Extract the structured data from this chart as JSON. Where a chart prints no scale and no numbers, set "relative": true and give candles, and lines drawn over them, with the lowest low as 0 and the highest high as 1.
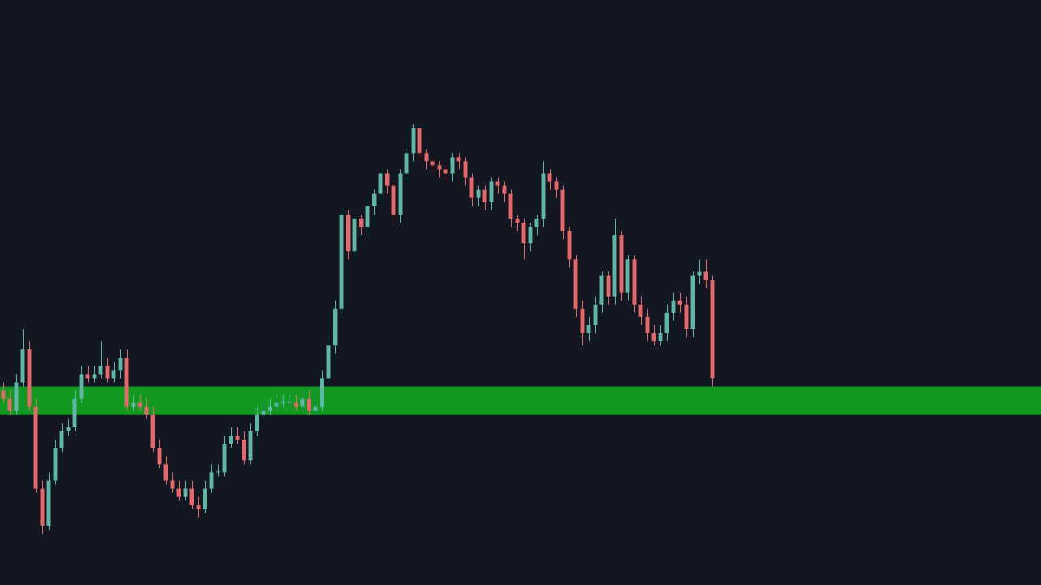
{
  "chart_data": {
    "type": "candlestick",
    "relative": true,
    "categories": [
      null,
      null,
      null,
      null,
      null,
      null,
      null,
      null,
      null,
      null,
      null,
      null,
      null,
      null,
      null,
      null,
      null,
      null,
      null,
      null,
      null,
      null,
      null,
      null,
      null,
      null,
      null,
      null,
      null,
      null,
      null,
      null,
      null,
      null,
      null,
      null,
      null,
      null,
      null,
      null,
      null,
      null,
      null,
      null,
      null,
      null,
      null,
      null,
      null,
      null,
      null,
      null,
      null,
      null,
      null,
      null,
      null,
      null,
      null,
      null,
      null,
      null,
      null,
      null,
      null,
      null,
      null,
      null,
      null,
      null,
      null,
      null,
      null,
      null,
      null,
      null,
      null,
      null,
      null,
      null,
      null,
      null,
      null,
      null,
      null,
      null,
      null,
      null,
      null,
      null,
      null,
      null,
      null,
      null,
      null,
      null,
      null,
      null,
      null,
      null,
      null,
      null,
      null,
      null,
      null,
      null,
      null,
      null,
      null,
      null,
      null,
      null,
      null,
      null,
      null,
      null,
      null,
      null,
      null,
      null,
      null,
      null,
      null,
      null,
      null,
      null,
      null,
      null,
      null,
      null,
      null,
      null,
      null,
      null,
      null,
      null,
      null,
      null,
      null,
      null,
      null,
      null,
      null,
      null,
      null,
      null,
      null,
      null,
      null,
      null,
      null,
      null,
      null,
      null,
      null,
      null,
      null,
      null,
      null,
      null
    ],
    "ohlc": [
      [
        0.35,
        0.37,
        0.32,
        0.33
      ],
      [
        0.33,
        0.35,
        0.29,
        0.3
      ],
      [
        0.3,
        0.39,
        0.29,
        0.37
      ],
      [
        0.37,
        0.5,
        0.36,
        0.45
      ],
      [
        0.45,
        0.47,
        0.3,
        0.31
      ],
      [
        0.31,
        0.33,
        0.1,
        0.11
      ],
      [
        0.11,
        0.13,
        0,
        0.02
      ],
      [
        0.02,
        0.15,
        0.01,
        0.13
      ],
      [
        0.13,
        0.23,
        0.12,
        0.21
      ],
      [
        0.21,
        0.27,
        0.2,
        0.25
      ],
      [
        0.25,
        0.28,
        0.24,
        0.26
      ],
      [
        0.26,
        0.35,
        0.25,
        0.33
      ],
      [
        0.33,
        0.41,
        0.32,
        0.39
      ],
      [
        0.39,
        0.41,
        0.37,
        0.38
      ],
      [
        0.38,
        0.41,
        0.37,
        0.39
      ],
      [
        0.39,
        0.47,
        0.38,
        0.41
      ],
      [
        0.41,
        0.43,
        0.37,
        0.38
      ],
      [
        0.38,
        0.42,
        0.37,
        0.4
      ],
      [
        0.4,
        0.45,
        0.38,
        0.43
      ],
      [
        0.43,
        0.45,
        0.3,
        0.31
      ],
      [
        0.31,
        0.34,
        0.3,
        0.32
      ],
      [
        0.32,
        0.34,
        0.3,
        0.31
      ],
      [
        0.31,
        0.33,
        0.28,
        0.29
      ],
      [
        0.29,
        0.31,
        0.2,
        0.21
      ],
      [
        0.21,
        0.23,
        0.16,
        0.17
      ],
      [
        0.17,
        0.19,
        0.12,
        0.13
      ],
      [
        0.13,
        0.15,
        0.1,
        0.11
      ],
      [
        0.11,
        0.13,
        0.08,
        0.09
      ],
      [
        0.09,
        0.13,
        0.08,
        0.11
      ],
      [
        0.11,
        0.13,
        0.06,
        0.07
      ],
      [
        0.07,
        0.09,
        0.04,
        0.06
      ],
      [
        0.06,
        0.13,
        0.05,
        0.11
      ],
      [
        0.11,
        0.17,
        0.1,
        0.15
      ],
      [
        0.15,
        0.17,
        0.14,
        0.15
      ],
      [
        0.15,
        0.24,
        0.14,
        0.22
      ],
      [
        0.22,
        0.26,
        0.21,
        0.24
      ],
      [
        0.24,
        0.26,
        0.22,
        0.23
      ],
      [
        0.23,
        0.25,
        0.17,
        0.18
      ],
      [
        0.18,
        0.27,
        0.17,
        0.25
      ],
      [
        0.25,
        0.31,
        0.24,
        0.29
      ],
      [
        0.29,
        0.32,
        0.28,
        0.3
      ],
      [
        0.3,
        0.33,
        0.29,
        0.31
      ],
      [
        0.31,
        0.34,
        0.3,
        0.32
      ],
      [
        0.32,
        0.34,
        0.31,
        0.32
      ],
      [
        0.32,
        0.34,
        0.31,
        0.32
      ],
      [
        0.32,
        0.34,
        0.3,
        0.31
      ],
      [
        0.31,
        0.35,
        0.3,
        0.33
      ],
      [
        0.33,
        0.35,
        0.29,
        0.3
      ],
      [
        0.3,
        0.33,
        0.29,
        0.31
      ],
      [
        0.31,
        0.4,
        0.3,
        0.38
      ],
      [
        0.38,
        0.48,
        0.37,
        0.46
      ],
      [
        0.46,
        0.57,
        0.44,
        0.55
      ],
      [
        0.55,
        0.79,
        0.53,
        0.78
      ],
      [
        0.78,
        0.79,
        0.67,
        0.69
      ],
      [
        0.69,
        0.78,
        0.67,
        0.77
      ],
      [
        0.77,
        0.78,
        0.73,
        0.75
      ],
      [
        0.75,
        0.81,
        0.73,
        0.8
      ],
      [
        0.8,
        0.84,
        0.78,
        0.83
      ],
      [
        0.83,
        0.89,
        0.81,
        0.88
      ],
      [
        0.88,
        0.89,
        0.83,
        0.85
      ],
      [
        0.85,
        0.86,
        0.76,
        0.78
      ],
      [
        0.78,
        0.89,
        0.76,
        0.88
      ],
      [
        0.88,
        0.94,
        0.86,
        0.93
      ],
      [
        0.93,
        1,
        0.91,
        0.99
      ],
      [
        0.99,
        0.99,
        0.91,
        0.93
      ],
      [
        0.93,
        0.94,
        0.89,
        0.91
      ],
      [
        0.91,
        0.92,
        0.88,
        0.9
      ],
      [
        0.9,
        0.91,
        0.87,
        0.89
      ],
      [
        0.89,
        0.9,
        0.86,
        0.88
      ],
      [
        0.88,
        0.93,
        0.86,
        0.92
      ],
      [
        0.92,
        0.93,
        0.89,
        0.91
      ],
      [
        0.91,
        0.92,
        0.85,
        0.87
      ],
      [
        0.87,
        0.88,
        0.8,
        0.82
      ],
      [
        0.82,
        0.85,
        0.8,
        0.84
      ],
      [
        0.84,
        0.85,
        0.79,
        0.81
      ],
      [
        0.81,
        0.87,
        0.79,
        0.86
      ],
      [
        0.86,
        0.87,
        0.83,
        0.85
      ],
      [
        0.85,
        0.86,
        0.81,
        0.83
      ],
      [
        0.83,
        0.84,
        0.75,
        0.77
      ],
      [
        0.77,
        0.78,
        0.74,
        0.76
      ],
      [
        0.76,
        0.77,
        0.67,
        0.71
      ],
      [
        0.71,
        0.76,
        0.69,
        0.75
      ],
      [
        0.75,
        0.78,
        0.73,
        0.77
      ],
      [
        0.77,
        0.91,
        0.75,
        0.88
      ],
      [
        0.88,
        0.89,
        0.84,
        0.86
      ],
      [
        0.86,
        0.87,
        0.82,
        0.84
      ],
      [
        0.84,
        0.85,
        0.72,
        0.74
      ],
      [
        0.74,
        0.75,
        0.65,
        0.67
      ],
      [
        0.67,
        0.68,
        0.53,
        0.55
      ],
      [
        0.55,
        0.57,
        0.46,
        0.49
      ],
      [
        0.49,
        0.53,
        0.47,
        0.51
      ],
      [
        0.51,
        0.58,
        0.49,
        0.56
      ],
      [
        0.56,
        0.64,
        0.54,
        0.63
      ],
      [
        0.63,
        0.64,
        0.56,
        0.58
      ],
      [
        0.58,
        0.77,
        0.56,
        0.73
      ],
      [
        0.73,
        0.74,
        0.57,
        0.59
      ],
      [
        0.59,
        0.68,
        0.57,
        0.67
      ],
      [
        0.67,
        0.68,
        0.54,
        0.56
      ],
      [
        0.56,
        0.58,
        0.51,
        0.53
      ],
      [
        0.53,
        0.55,
        0.47,
        0.49
      ],
      [
        0.49,
        0.51,
        0.46,
        0.47
      ],
      [
        0.47,
        0.51,
        0.46,
        0.49
      ],
      [
        0.49,
        0.56,
        0.47,
        0.54
      ],
      [
        0.54,
        0.59,
        0.52,
        0.57
      ],
      [
        0.57,
        0.59,
        0.54,
        0.56
      ],
      [
        0.56,
        0.58,
        0.48,
        0.5
      ],
      [
        0.5,
        0.64,
        0.48,
        0.63
      ],
      [
        0.63,
        0.67,
        0.61,
        0.64
      ],
      [
        0.64,
        0.67,
        0.6,
        0.62
      ],
      [
        0.62,
        0.63,
        0.36,
        0.38
      ],
      null,
      null,
      null,
      null,
      null,
      null,
      null,
      null,
      null,
      null,
      null,
      null,
      null,
      null,
      null,
      null,
      null,
      null,
      null,
      null,
      null,
      null,
      null,
      null,
      null,
      null,
      null,
      null,
      null,
      null,
      null,
      null,
      null,
      null,
      null,
      null,
      null,
      null,
      null,
      null,
      null,
      null,
      null,
      null,
      null,
      null,
      null,
      null,
      null,
      null
    ],
    "bands": [
      {
        "axis": "y",
        "from": 0.29,
        "to": 0.36,
        "color": "#119a1f"
      }
    ]
  }
}
